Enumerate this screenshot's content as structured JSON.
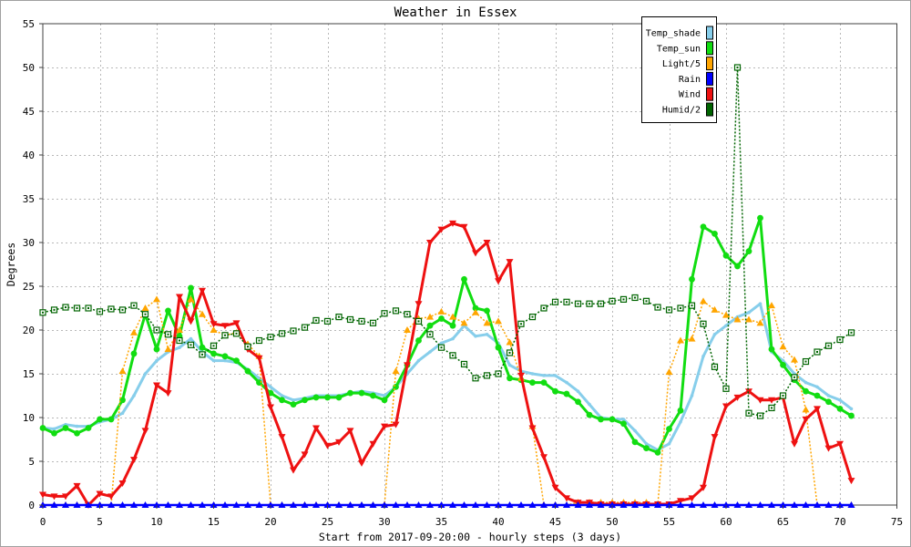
{
  "chart_data": {
    "type": "line",
    "title": "Weather in Essex",
    "xlabel": "Start from 2017-09-20:00 - hourly steps (3 days)",
    "ylabel": "Degrees",
    "xlim": [
      0,
      75
    ],
    "ylim": [
      0,
      55
    ],
    "xticks": [
      0,
      5,
      10,
      15,
      20,
      25,
      30,
      35,
      40,
      45,
      50,
      55,
      60,
      65,
      70,
      75
    ],
    "yticks": [
      0,
      5,
      10,
      15,
      20,
      25,
      30,
      35,
      40,
      45,
      50,
      55
    ],
    "grid": true,
    "legend_position": "top-right",
    "x": [
      0,
      1,
      2,
      3,
      4,
      5,
      6,
      7,
      8,
      9,
      10,
      11,
      12,
      13,
      14,
      15,
      16,
      17,
      18,
      19,
      20,
      21,
      22,
      23,
      24,
      25,
      26,
      27,
      28,
      29,
      30,
      31,
      32,
      33,
      34,
      35,
      36,
      37,
      38,
      39,
      40,
      41,
      42,
      43,
      44,
      45,
      46,
      47,
      48,
      49,
      50,
      51,
      52,
      53,
      54,
      55,
      56,
      57,
      58,
      59,
      60,
      61,
      62,
      63,
      64,
      65,
      66,
      67,
      68,
      69,
      70,
      71
    ],
    "series": [
      {
        "name": "Temp_shade",
        "color": "#87ceeb",
        "values": [
          8.8,
          8.7,
          9.2,
          9.0,
          9.0,
          9.5,
          9.8,
          10.5,
          12.5,
          15.0,
          16.5,
          17.5,
          18.0,
          19.0,
          17.5,
          16.5,
          16.5,
          16.3,
          15.5,
          14.5,
          13.5,
          12.5,
          12.0,
          12.2,
          12.5,
          12.5,
          12.5,
          12.8,
          13.0,
          12.8,
          12.5,
          13.5,
          15.0,
          16.5,
          17.5,
          18.5,
          19.0,
          20.5,
          19.3,
          19.5,
          18.5,
          16.0,
          15.3,
          15.0,
          14.8,
          14.8,
          14.0,
          13.0,
          11.5,
          10.0,
          9.8,
          9.8,
          8.5,
          7.0,
          6.3,
          7.0,
          9.5,
          12.5,
          17.0,
          19.5,
          20.5,
          21.5,
          22.0,
          23.0,
          17.5,
          16.5,
          15.0,
          14.0,
          13.5,
          12.5,
          12.0,
          11.0
        ]
      },
      {
        "name": "Temp_sun",
        "color": "#11dd11",
        "values": [
          8.8,
          8.2,
          8.8,
          8.2,
          8.8,
          9.8,
          9.8,
          12.0,
          17.3,
          21.8,
          17.8,
          22.2,
          19.3,
          24.8,
          18.0,
          17.3,
          17.0,
          16.5,
          15.3,
          14.0,
          12.8,
          12.0,
          11.5,
          12.0,
          12.3,
          12.3,
          12.3,
          12.8,
          12.8,
          12.5,
          12.0,
          13.5,
          16.0,
          18.8,
          20.5,
          21.3,
          20.5,
          25.8,
          22.5,
          22.2,
          18.0,
          14.5,
          14.3,
          14.0,
          14.0,
          13.0,
          12.7,
          11.8,
          10.3,
          9.8,
          9.8,
          9.3,
          7.2,
          6.5,
          6.0,
          8.7,
          10.8,
          25.8,
          31.8,
          31.0,
          28.5,
          27.3,
          29.0,
          32.8,
          17.8,
          16.0,
          14.3,
          13.0,
          12.5,
          11.8,
          11.0,
          10.2
        ]
      },
      {
        "name": "Light/5",
        "color": "#ffa500",
        "values": [
          0,
          0,
          0,
          0,
          0,
          0,
          0,
          15.3,
          19.7,
          22.5,
          23.5,
          17.8,
          20.0,
          23.5,
          21.8,
          20.0,
          19.4,
          19.7,
          18.4,
          17.0,
          0,
          0,
          0,
          0,
          0,
          0,
          0,
          0,
          0,
          0,
          0,
          15.3,
          20.0,
          21.3,
          21.5,
          22.1,
          21.5,
          20.8,
          22.0,
          20.8,
          21.0,
          18.6,
          14.5,
          9.0,
          0,
          0,
          0,
          0.3,
          0.3,
          0.3,
          0.3,
          0.3,
          0.3,
          0.3,
          0,
          15.2,
          18.8,
          19.0,
          23.3,
          22.3,
          21.7,
          21.2,
          21.2,
          20.8,
          22.8,
          18.1,
          16.6,
          10.9,
          0,
          0,
          0,
          0
        ]
      },
      {
        "name": "Rain",
        "color": "#0000ff",
        "values": [
          0,
          0,
          0,
          0,
          0,
          0,
          0,
          0,
          0,
          0,
          0,
          0,
          0,
          0,
          0,
          0,
          0,
          0,
          0,
          0,
          0,
          0,
          0,
          0,
          0,
          0,
          0,
          0,
          0,
          0,
          0,
          0,
          0,
          0,
          0,
          0,
          0,
          0,
          0,
          0,
          0,
          0,
          0,
          0,
          0,
          0,
          0,
          0,
          0,
          0,
          0,
          0,
          0,
          0,
          0,
          0,
          0,
          0,
          0,
          0,
          0,
          0,
          0,
          0,
          0,
          0,
          0,
          0,
          0,
          0,
          0,
          0
        ]
      },
      {
        "name": "Wind",
        "color": "#ee1111",
        "values": [
          1.2,
          1.0,
          1.0,
          2.2,
          0.0,
          1.3,
          1.0,
          2.5,
          5.2,
          8.5,
          13.7,
          12.8,
          23.8,
          21.0,
          24.5,
          20.7,
          20.5,
          20.8,
          17.8,
          16.8,
          11.2,
          7.8,
          4.0,
          5.8,
          8.8,
          6.8,
          7.2,
          8.5,
          4.8,
          7.0,
          9.0,
          9.2,
          16.0,
          23.0,
          30.0,
          31.5,
          32.2,
          31.8,
          28.8,
          30.0,
          25.6,
          27.8,
          14.8,
          8.8,
          5.5,
          2.0,
          0.8,
          0.3,
          0.3,
          0.1,
          0.1,
          0.1,
          0.1,
          0.1,
          0.1,
          0.1,
          0.5,
          0.8,
          2.0,
          7.8,
          11.3,
          12.3,
          13.0,
          12.0,
          12.0,
          12.3,
          7.0,
          9.8,
          11.0,
          6.5,
          7.0,
          2.8
        ]
      },
      {
        "name": "Humid/2",
        "color": "#006400",
        "values": [
          22.0,
          22.3,
          22.6,
          22.5,
          22.5,
          22.1,
          22.4,
          22.3,
          22.8,
          21.8,
          20.0,
          19.5,
          18.8,
          18.3,
          17.2,
          18.2,
          19.4,
          19.6,
          18.1,
          18.8,
          19.2,
          19.6,
          19.9,
          20.3,
          21.1,
          21.0,
          21.5,
          21.2,
          21.0,
          20.8,
          21.9,
          22.2,
          21.8,
          21.0,
          19.5,
          18.0,
          17.1,
          16.1,
          14.5,
          14.8,
          15.0,
          17.4,
          20.7,
          21.5,
          22.5,
          23.2,
          23.2,
          23.0,
          23.0,
          23.0,
          23.3,
          23.5,
          23.7,
          23.3,
          22.6,
          22.3,
          22.5,
          22.8,
          20.7,
          15.8,
          13.3,
          50.0,
          10.5,
          10.2,
          11.1,
          12.5,
          14.6,
          16.4,
          17.5,
          18.2,
          18.9,
          19.7
        ]
      }
    ]
  }
}
